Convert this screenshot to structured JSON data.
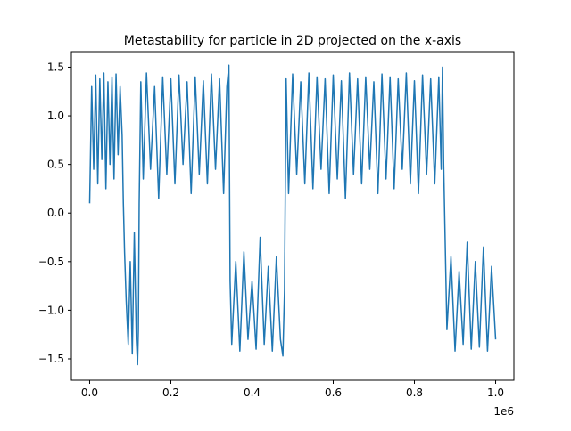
{
  "chart_data": {
    "type": "line",
    "title": "Metastability for particle in 2D projected on the x-axis",
    "xlabel": "",
    "ylabel": "",
    "x_offset_label": "1e6",
    "xlim": [
      -45000,
      1045000
    ],
    "ylim": [
      -1.72,
      1.66
    ],
    "grid": false,
    "legend": "none",
    "x_ticks": [
      {
        "value": 0.0,
        "label": "0.0"
      },
      {
        "value": 0.2,
        "label": "0.2"
      },
      {
        "value": 0.4,
        "label": "0.4"
      },
      {
        "value": 0.6,
        "label": "0.6"
      },
      {
        "value": 0.8,
        "label": "0.8"
      },
      {
        "value": 1.0,
        "label": "1.0"
      }
    ],
    "y_ticks": [
      {
        "value": 1.5,
        "label": "1.5"
      },
      {
        "value": 1.0,
        "label": "1.0"
      },
      {
        "value": 0.5,
        "label": "0.5"
      },
      {
        "value": 0.0,
        "label": "0.0"
      },
      {
        "value": -0.5,
        "label": "−0.5"
      },
      {
        "value": -1.0,
        "label": "−1.0"
      },
      {
        "value": -1.5,
        "label": "−1.5"
      }
    ],
    "series": [
      {
        "color": "#1f77b4",
        "x": [
          0,
          5000,
          10000,
          15000,
          20000,
          25000,
          30000,
          35000,
          40000,
          45000,
          50000,
          55000,
          60000,
          65000,
          70000,
          75000,
          80000,
          83000,
          86000,
          90000,
          95000,
          100000,
          105000,
          110000,
          115000,
          118000,
          120000,
          122000,
          126000,
          132000,
          140000,
          150000,
          160000,
          170000,
          180000,
          190000,
          200000,
          210000,
          220000,
          230000,
          240000,
          250000,
          260000,
          270000,
          280000,
          290000,
          300000,
          310000,
          320000,
          330000,
          338000,
          343000,
          346000,
          350000,
          360000,
          370000,
          380000,
          390000,
          400000,
          410000,
          420000,
          430000,
          440000,
          450000,
          460000,
          470000,
          476000,
          480000,
          484000,
          490000,
          500000,
          510000,
          520000,
          530000,
          540000,
          550000,
          560000,
          570000,
          580000,
          590000,
          600000,
          610000,
          620000,
          630000,
          640000,
          650000,
          660000,
          670000,
          680000,
          690000,
          700000,
          710000,
          720000,
          730000,
          740000,
          750000,
          760000,
          770000,
          780000,
          790000,
          800000,
          810000,
          820000,
          830000,
          840000,
          850000,
          860000,
          866000,
          869000,
          872000,
          880000,
          890000,
          900000,
          910000,
          920000,
          930000,
          940000,
          950000,
          960000,
          970000,
          980000,
          990000,
          1000000
        ],
        "y": [
          0.1,
          1.3,
          0.45,
          1.42,
          0.3,
          1.38,
          0.55,
          1.44,
          0.25,
          1.35,
          0.5,
          1.4,
          0.35,
          1.43,
          0.6,
          1.3,
          0.8,
          0.1,
          -0.4,
          -0.9,
          -1.35,
          -0.5,
          -1.45,
          -0.2,
          -1.3,
          -1.56,
          -1.2,
          0.1,
          1.35,
          0.35,
          1.44,
          0.45,
          1.3,
          0.15,
          1.4,
          0.4,
          1.38,
          0.3,
          1.42,
          0.5,
          1.35,
          0.2,
          1.4,
          0.4,
          1.36,
          0.3,
          1.43,
          0.45,
          1.38,
          0.2,
          1.3,
          1.52,
          -0.7,
          -1.35,
          -0.5,
          -1.42,
          -0.4,
          -1.3,
          -0.7,
          -1.4,
          -0.25,
          -1.35,
          -0.55,
          -1.42,
          -0.45,
          -1.3,
          -1.47,
          -0.8,
          1.38,
          0.2,
          1.43,
          0.4,
          1.35,
          0.3,
          1.44,
          0.25,
          1.4,
          0.45,
          1.38,
          0.2,
          1.42,
          0.35,
          1.36,
          0.15,
          1.44,
          0.4,
          1.38,
          0.3,
          1.4,
          0.45,
          1.35,
          0.2,
          1.43,
          0.35,
          1.4,
          0.25,
          1.38,
          0.45,
          1.44,
          0.3,
          1.36,
          0.2,
          1.42,
          0.4,
          1.38,
          0.3,
          1.4,
          0.45,
          1.5,
          0.5,
          -1.2,
          -0.45,
          -1.42,
          -0.6,
          -1.35,
          -0.3,
          -1.4,
          -0.5,
          -1.38,
          -0.35,
          -1.42,
          -0.55,
          -1.3
        ]
      }
    ]
  }
}
